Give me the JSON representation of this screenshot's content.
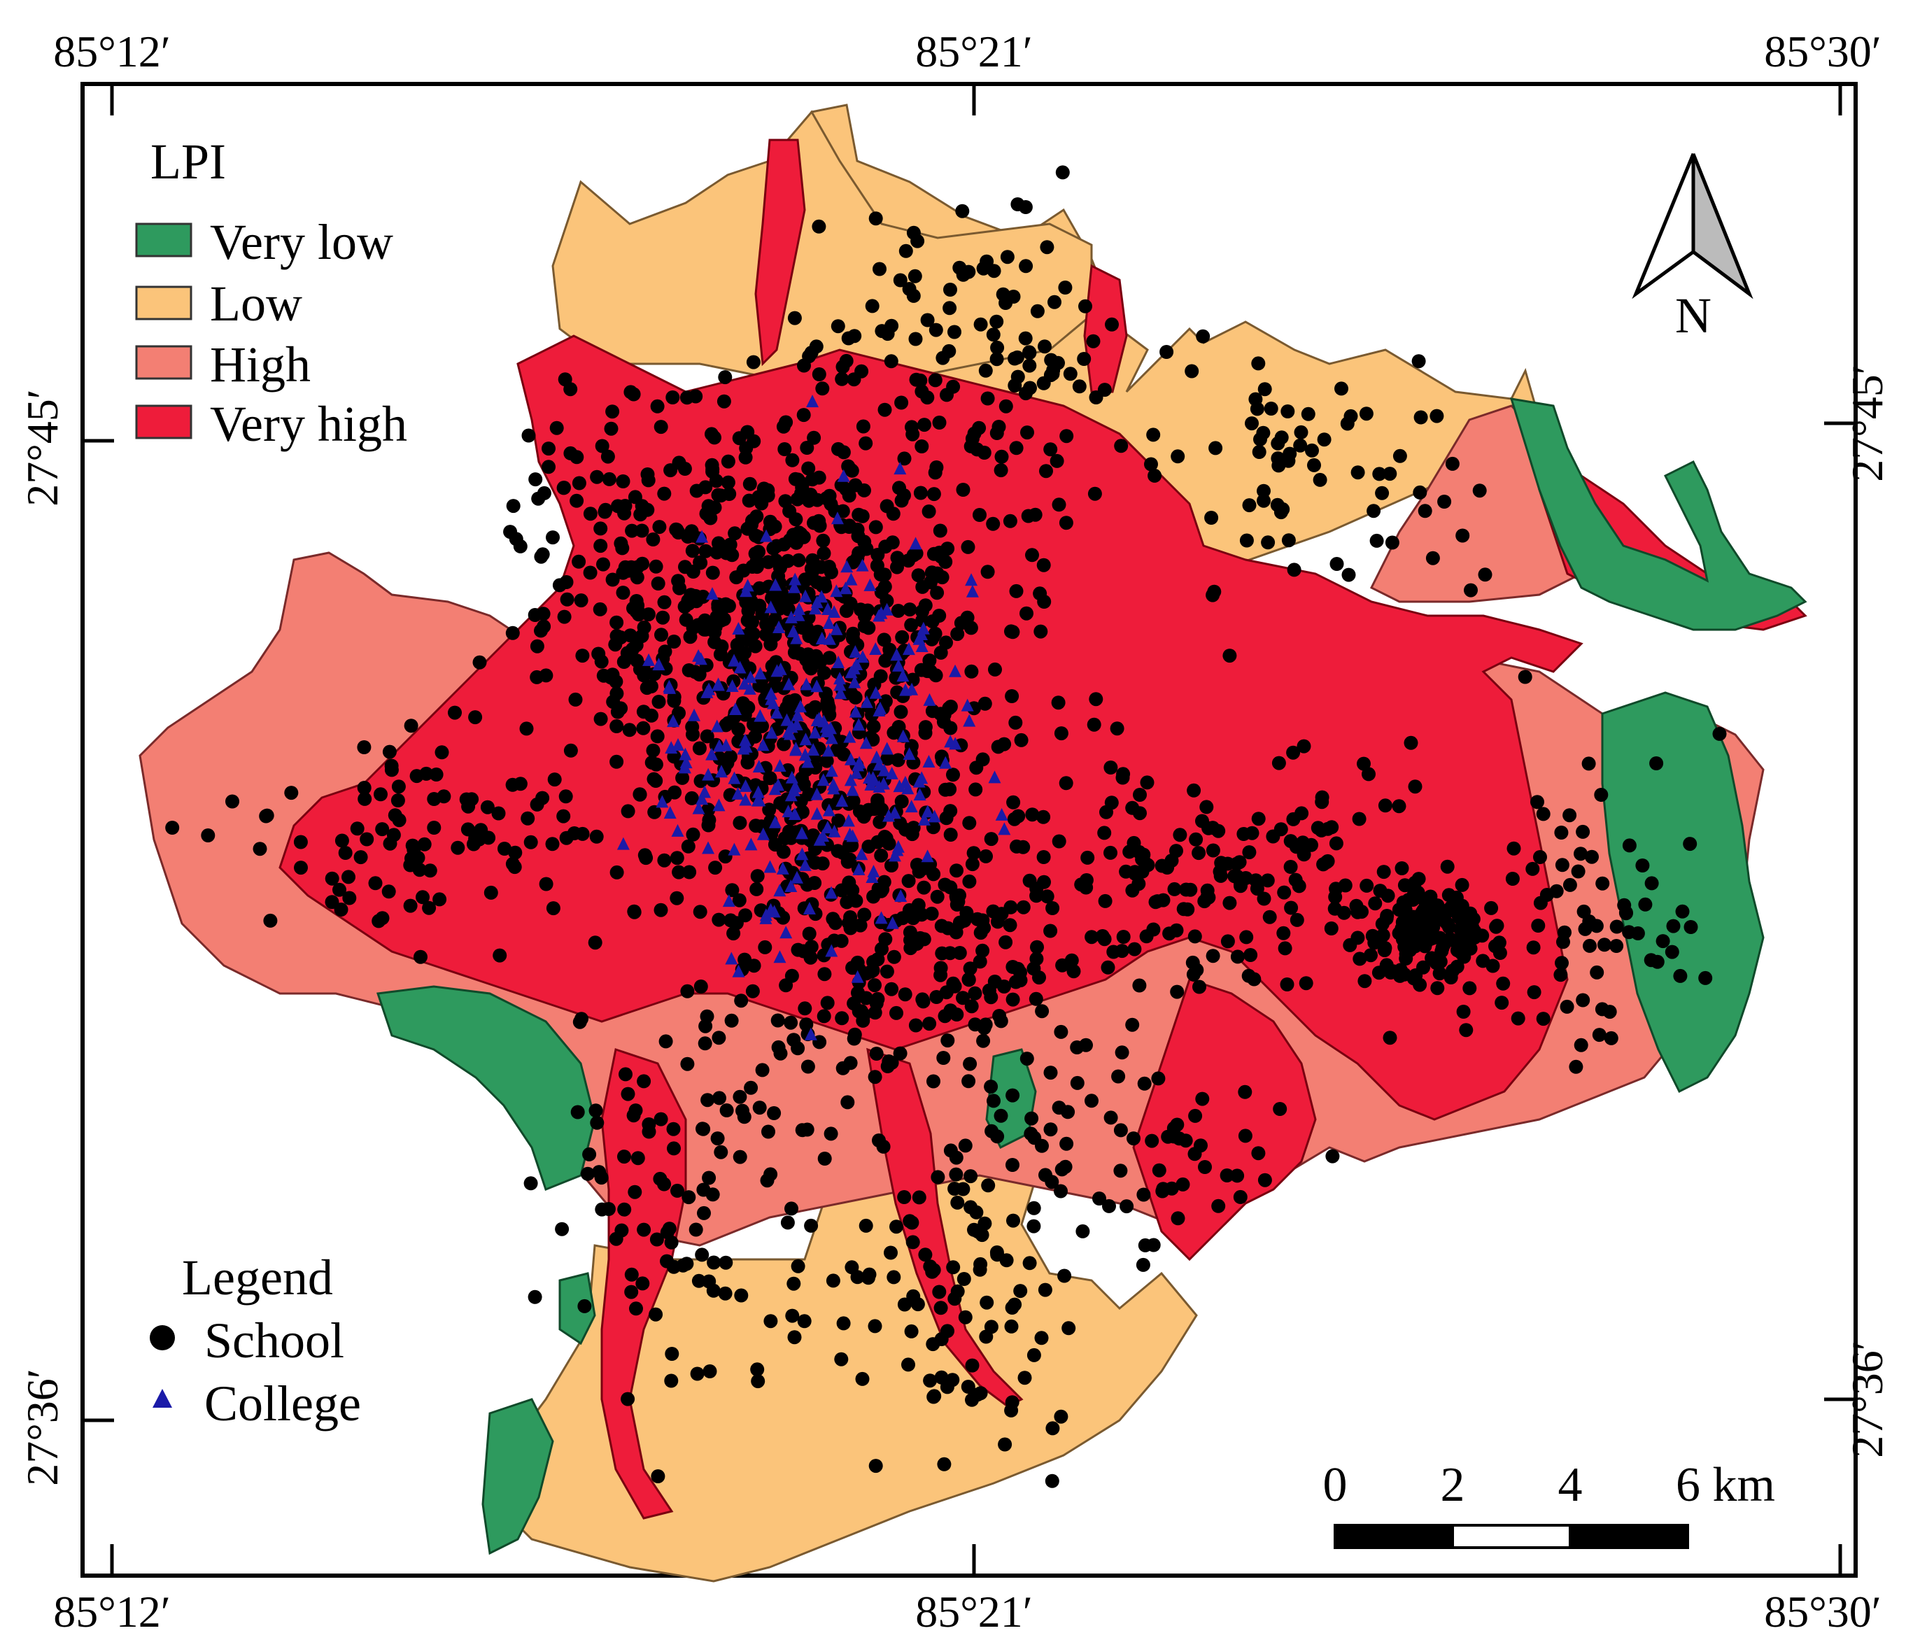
{
  "lpi_legend": {
    "title": "LPI",
    "classes": [
      {
        "label": "Very low",
        "color": "#2e9a5e"
      },
      {
        "label": "Low",
        "color": "#fbc47a"
      },
      {
        "label": "High",
        "color": "#f37f73"
      },
      {
        "label": "Very high",
        "color": "#ee1c3a"
      }
    ]
  },
  "point_legend": {
    "title": "Legend",
    "items": [
      {
        "label": "School",
        "symbol": "circle",
        "color": "#000000"
      },
      {
        "label": "College",
        "symbol": "triangle",
        "color": "#1a1aa8"
      }
    ]
  },
  "coordinates": {
    "top": [
      "85°12′",
      "85°21′",
      "85°30′"
    ],
    "bottom": [
      "85°12′",
      "85°21′",
      "85°30′"
    ],
    "left": [
      "27°45′",
      "27°36′"
    ],
    "right": [
      "27°45′",
      "27°36′"
    ]
  },
  "north_arrow": {
    "label": "N"
  },
  "scale_bar": {
    "labels": [
      "0",
      "2",
      "4",
      "6 km"
    ]
  }
}
